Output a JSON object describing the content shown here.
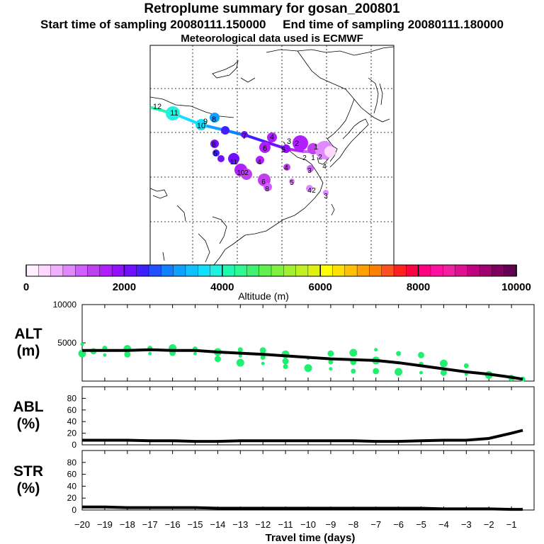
{
  "titles": {
    "main": "Retroplume summary for gosan_200801",
    "start": "Start time of sampling 20080111.150000",
    "end": "End time of sampling 20080111.180000",
    "met": "Meteorological data used is ECMWF"
  },
  "colorbar": {
    "title": "Altitude (m)",
    "min": 0,
    "max": 10000,
    "tick_labels": [
      "0",
      "2000",
      "4000",
      "6000",
      "8000",
      "10000"
    ],
    "colors": [
      "#fff0ff",
      "#ffd8ff",
      "#f0b0ff",
      "#e088ff",
      "#d060ff",
      "#c040f0",
      "#b020ff",
      "#9010ff",
      "#7010ff",
      "#4020ff",
      "#2050ff",
      "#1080ff",
      "#10a0ff",
      "#10c0ff",
      "#10e0ff",
      "#20f0e0",
      "#20f8b0",
      "#30f890",
      "#40f070",
      "#60f050",
      "#80f040",
      "#a0f030",
      "#c0f020",
      "#e0f010",
      "#ffff00",
      "#ffe000",
      "#ffc000",
      "#ffa000",
      "#ff8000",
      "#ff5020",
      "#ff2020",
      "#ff0040",
      "#ff0080",
      "#ff10a0",
      "#f020a0",
      "#e01090",
      "#c00080",
      "#a00070",
      "#800060",
      "#600050"
    ]
  },
  "map": {
    "trajectory_labels": [
      "12",
      "11",
      "10",
      "9",
      "8",
      "7",
      "6",
      "5",
      "4",
      "3",
      "2",
      "1"
    ]
  },
  "chart_data": [
    {
      "type": "line",
      "panel": "ALT",
      "ylabel": "ALT\n(m)",
      "ylabel_lines": [
        "ALT",
        "(m)"
      ],
      "ylim": [
        0,
        10000
      ],
      "yticks": [
        0,
        5000,
        10000
      ],
      "ytick_labels": [
        "5000",
        "10000"
      ],
      "x": [
        -20,
        -19,
        -18,
        -17,
        -16,
        -15,
        -14,
        -13,
        -12,
        -11,
        -10,
        -9,
        -8,
        -7,
        -6,
        -5,
        -4,
        -3,
        -2,
        -1,
        -0.5
      ],
      "mean": [
        4000,
        4000,
        4000,
        4100,
        4000,
        4000,
        3800,
        3650,
        3500,
        3300,
        3100,
        2900,
        2800,
        2700,
        2400,
        2000,
        1600,
        1200,
        900,
        500,
        250
      ],
      "cluster_points": {
        "x": [
          -20,
          -20,
          -19.5,
          -19,
          -19,
          -18,
          -18,
          -17,
          -17,
          -16,
          -16,
          -15,
          -15,
          -14,
          -14,
          -13,
          -13,
          -13,
          -12,
          -12,
          -12,
          -11,
          -11,
          -11,
          -10,
          -10,
          -9,
          -9,
          -9,
          -8,
          -8,
          -8,
          -7,
          -7,
          -7,
          -6,
          -6,
          -6,
          -5,
          -5,
          -5,
          -4,
          -4,
          -3,
          -3,
          -2,
          -1,
          -0.5
        ],
        "y": [
          4800,
          3600,
          3900,
          4300,
          3400,
          4200,
          3500,
          4300,
          3600,
          4300,
          3700,
          4200,
          3600,
          3800,
          2900,
          4100,
          3300,
          2400,
          4000,
          3100,
          2300,
          3500,
          2600,
          1900,
          3000,
          1700,
          3600,
          2500,
          1600,
          3700,
          2500,
          1300,
          4100,
          2700,
          1300,
          3600,
          2400,
          1200,
          3400,
          2200,
          1100,
          2300,
          1100,
          2000,
          900,
          800,
          400,
          250
        ],
        "color": "#20f070"
      },
      "line_color": "#000000"
    },
    {
      "type": "line",
      "panel": "ABL",
      "ylabel": "ABL\n(%)",
      "ylabel_lines": [
        "ABL",
        "(%)"
      ],
      "ylim": [
        0,
        100
      ],
      "yticks": [
        0,
        20,
        40,
        60,
        80
      ],
      "ytick_labels": [
        "0",
        "20",
        "40",
        "60",
        "80"
      ],
      "x": [
        -20,
        -19,
        -18,
        -17,
        -16,
        -15,
        -14,
        -13,
        -12,
        -11,
        -10,
        -9,
        -8,
        -7,
        -6,
        -5,
        -4,
        -3,
        -2,
        -1,
        -0.5
      ],
      "mean": [
        8,
        8,
        8,
        7,
        7,
        6,
        6,
        7,
        7,
        7,
        7,
        7,
        7,
        6,
        6,
        7,
        8,
        8,
        11,
        20,
        25
      ],
      "line_color": "#000000"
    },
    {
      "type": "line",
      "panel": "STR",
      "ylabel": "STR\n(%)",
      "ylabel_lines": [
        "STR",
        "(%)"
      ],
      "ylim": [
        0,
        100
      ],
      "yticks": [
        0,
        20,
        40,
        60,
        80
      ],
      "ytick_labels": [
        "0",
        "20",
        "40",
        "60",
        "80"
      ],
      "x": [
        -20,
        -19,
        -18,
        -17,
        -16,
        -15,
        -14,
        -13,
        -12,
        -11,
        -10,
        -9,
        -8,
        -7,
        -6,
        -5,
        -4,
        -3,
        -2,
        -1,
        -0.5
      ],
      "mean": [
        5,
        5,
        4,
        4,
        4,
        4,
        3,
        3,
        3,
        3,
        3,
        3,
        3,
        3,
        3,
        3,
        2,
        2,
        2,
        1,
        1
      ],
      "line_color": "#000000"
    }
  ],
  "xaxis": {
    "title": "Travel time (days)",
    "xlim": [
      -20,
      0
    ],
    "ticks": [
      -20,
      -19,
      -18,
      -17,
      -16,
      -15,
      -14,
      -13,
      -12,
      -11,
      -10,
      -9,
      -8,
      -7,
      -6,
      -5,
      -4,
      -3,
      -2,
      -1
    ],
    "tick_labels": [
      "−20",
      "−19",
      "−18",
      "−17",
      "−16",
      "−15",
      "−14",
      "−13",
      "−12",
      "−11",
      "−10",
      "−9",
      "−8",
      "−7",
      "−6",
      "−5",
      "−4",
      "−3",
      "−2",
      "−1"
    ]
  }
}
